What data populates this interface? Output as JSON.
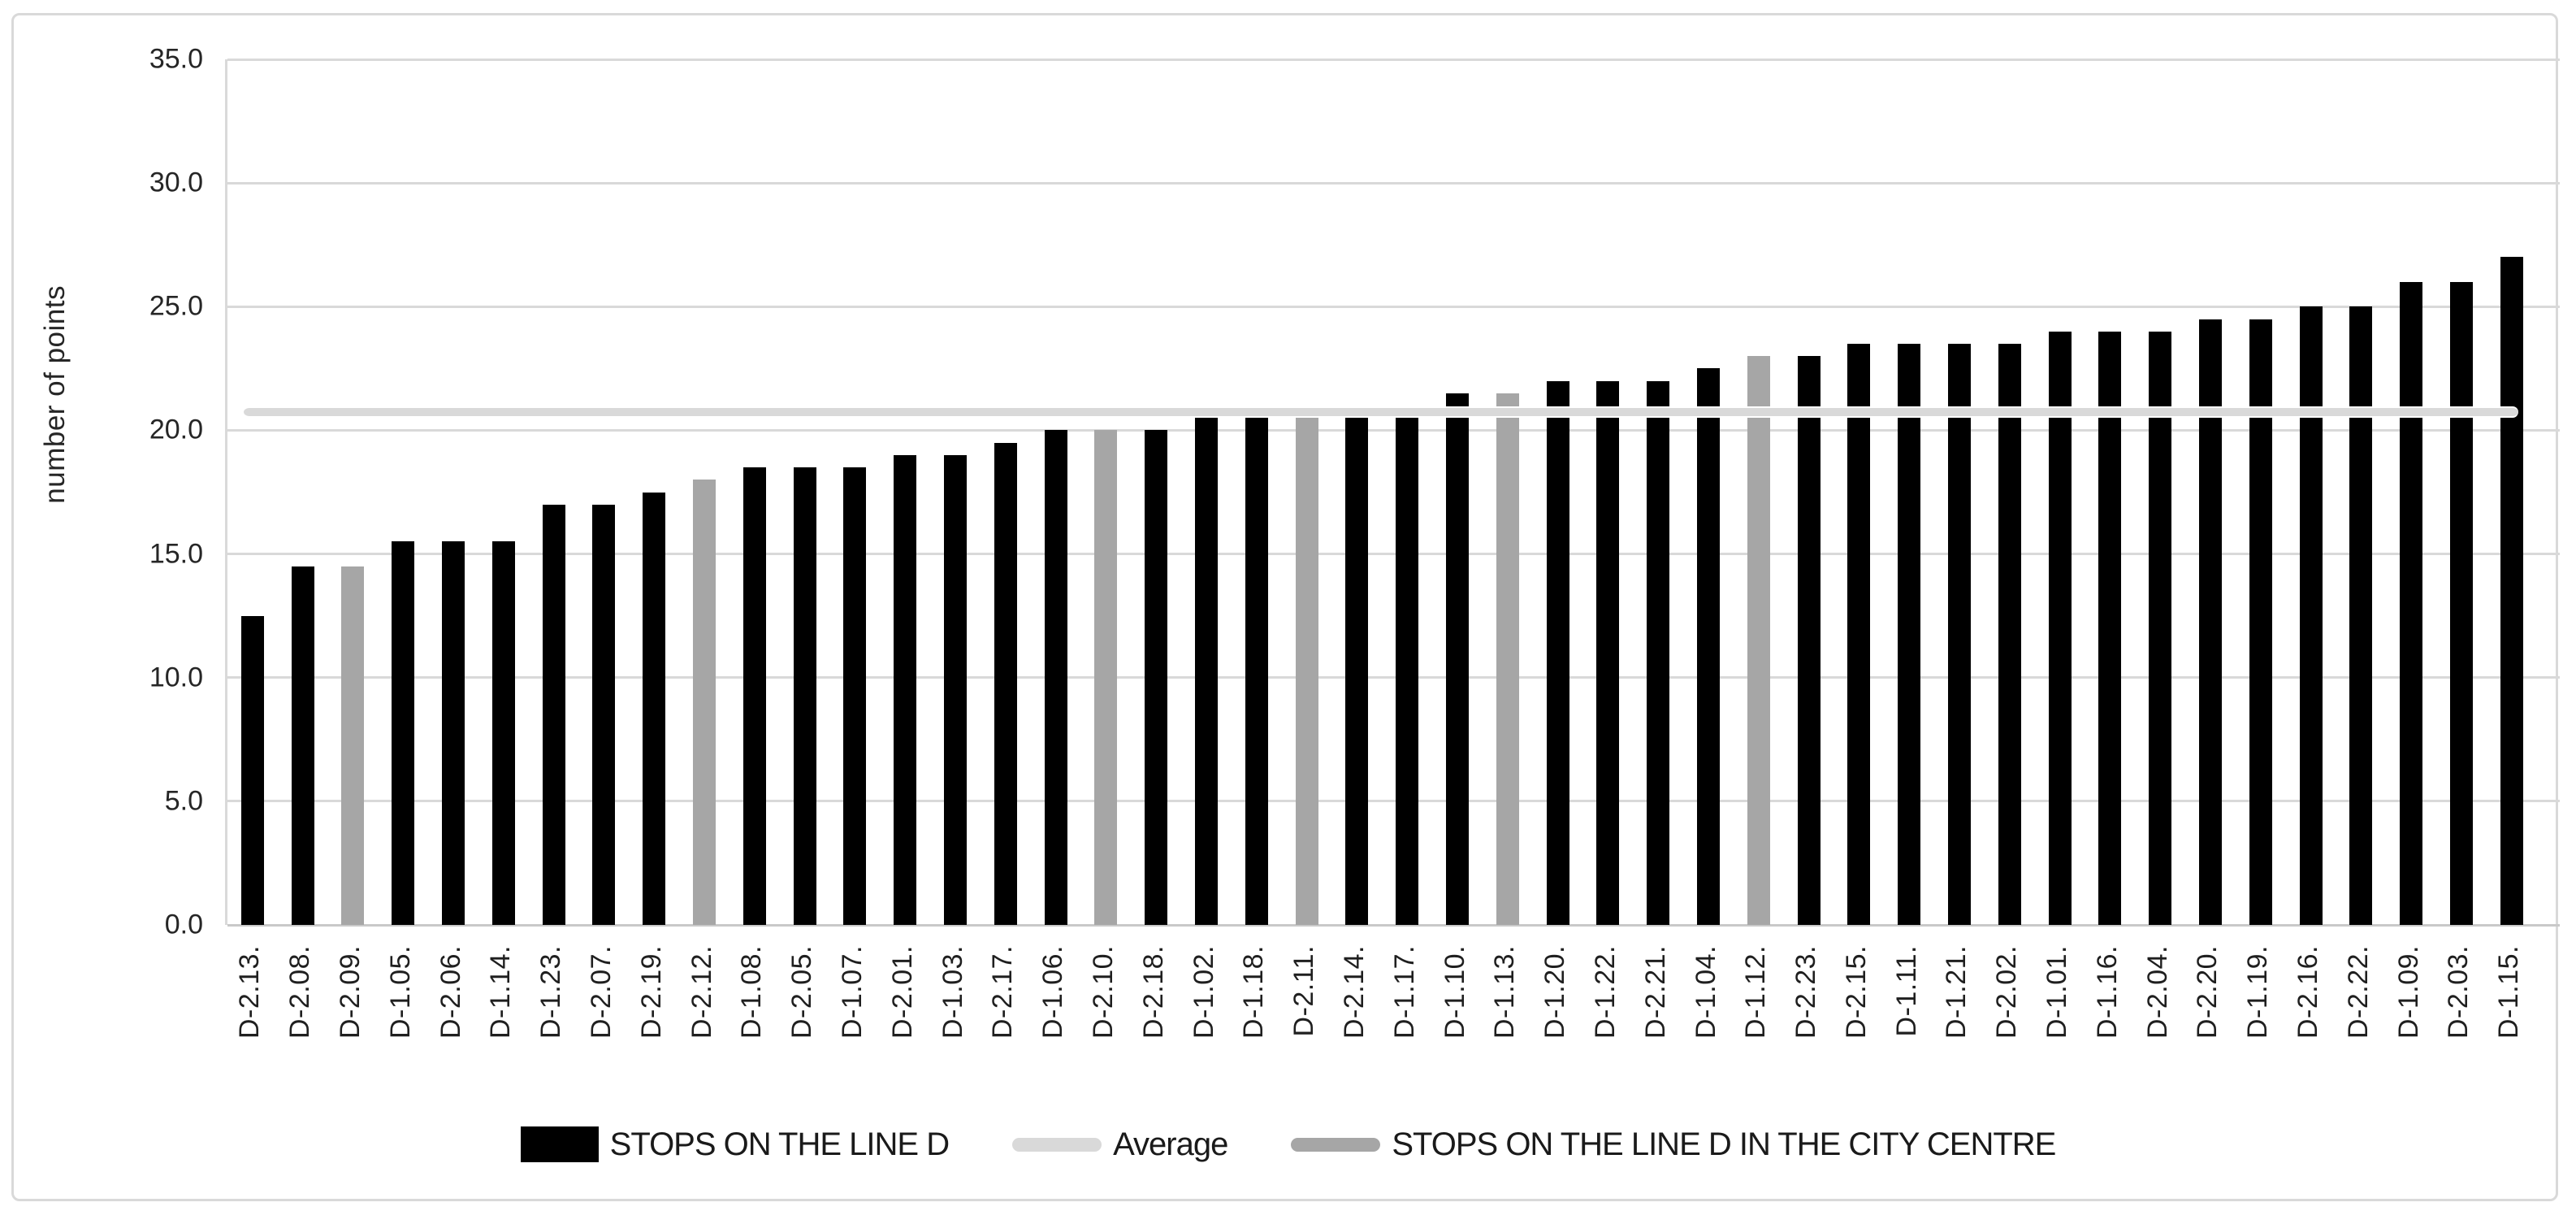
{
  "colors": {
    "bar_default": "#000000",
    "bar_city_centre": "#a6a6a6",
    "average_line": "#d9d9d9",
    "gridline": "#d9d9d9",
    "text": "#262626"
  },
  "chart_data": {
    "type": "bar",
    "title": "",
    "xlabel": "",
    "ylabel": "number of points",
    "ylim": [
      0,
      35
    ],
    "ytick_step": 5,
    "yticks": [
      "0.0",
      "5.0",
      "10.0",
      "15.0",
      "20.0",
      "25.0",
      "30.0",
      "35.0"
    ],
    "grid": "horizontal",
    "legend_position": "bottom",
    "categories": [
      "D-2.13.",
      "D-2.08.",
      "D-2.09.",
      "D-1.05.",
      "D-2.06.",
      "D-1.14.",
      "D-1.23.",
      "D-2.07.",
      "D-2.19.",
      "D-2.12.",
      "D-1.08.",
      "D-2.05.",
      "D-1.07.",
      "D-2.01.",
      "D-1.03.",
      "D-2.17.",
      "D-1.06.",
      "D-2.10.",
      "D-2.18.",
      "D-1.02.",
      "D-1.18.",
      "D-2.11.",
      "D-2.14.",
      "D-1.17.",
      "D-1.10.",
      "D-1.13.",
      "D-1.20.",
      "D-1.22.",
      "D-2.21.",
      "D-1.04.",
      "D-1.12.",
      "D-2.23.",
      "D-2.15.",
      "D-1.11.",
      "D-1.21.",
      "D-2.02.",
      "D-1.01.",
      "D-1.16.",
      "D-2.04.",
      "D-2.20.",
      "D-1.19.",
      "D-2.16.",
      "D-2.22.",
      "D-1.09.",
      "D-2.03.",
      "D-1.15."
    ],
    "values": [
      12.5,
      14.5,
      14.5,
      15.5,
      15.5,
      15.5,
      17.0,
      17.0,
      17.5,
      18.0,
      18.5,
      18.5,
      18.5,
      19.0,
      19.0,
      19.5,
      20.0,
      20.0,
      20.0,
      20.5,
      20.5,
      20.5,
      20.5,
      20.5,
      21.5,
      21.5,
      22.0,
      22.0,
      22.0,
      22.5,
      23.0,
      23.0,
      23.5,
      23.5,
      23.5,
      23.5,
      24.0,
      24.0,
      24.0,
      24.5,
      24.5,
      25.0,
      25.0,
      26.0,
      26.0,
      27.0
    ],
    "city_centre_categories": [
      "D-2.09.",
      "D-2.12.",
      "D-2.10.",
      "D-2.11.",
      "D-1.13.",
      "D-1.12."
    ],
    "average": 20.75,
    "legend": [
      {
        "label": "STOPS ON THE LINE D",
        "marker": "square",
        "color": "#000000"
      },
      {
        "label": "Average",
        "marker": "line",
        "color": "#d9d9d9"
      },
      {
        "label": "STOPS ON THE LINE D IN THE CITY CENTRE",
        "marker": "line",
        "color": "#a6a6a6"
      }
    ]
  }
}
